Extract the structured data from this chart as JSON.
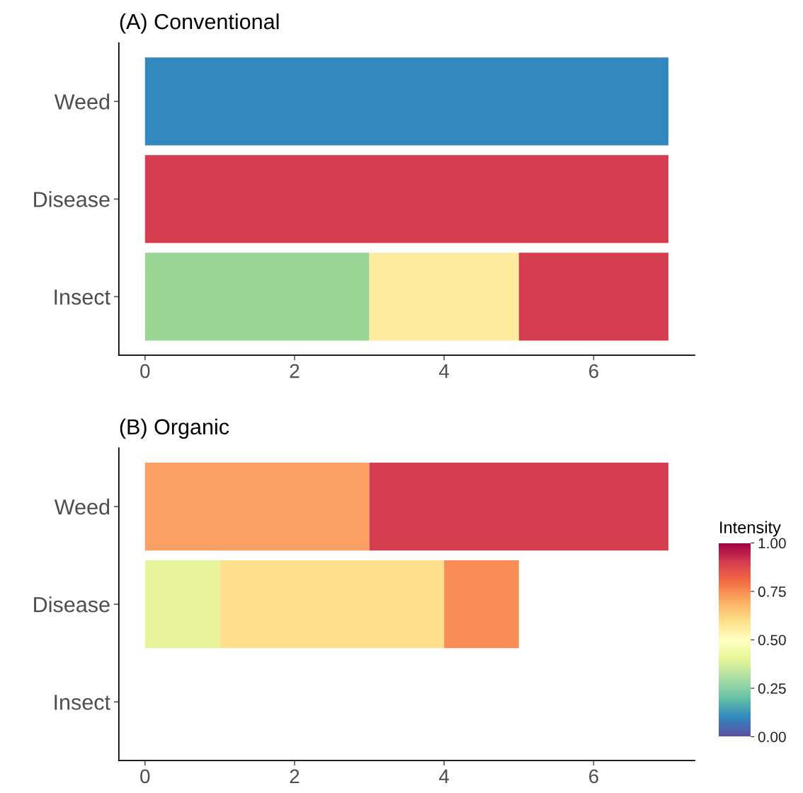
{
  "chart_data": [
    {
      "type": "bar",
      "title": "(A) Conventional",
      "orientation": "horizontal",
      "stacked": true,
      "categories": [
        "Weed",
        "Disease",
        "Insect"
      ],
      "xlim": [
        -0.35,
        7.35
      ],
      "xticks": [
        0,
        2,
        4,
        6
      ],
      "grid": false,
      "series": [
        {
          "colors": [
            "#3288bd",
            "#d53e4f",
            "#99d594"
          ],
          "values": [
            7,
            7,
            3
          ]
        },
        {
          "colors": [
            null,
            null,
            "#feeb9e"
          ],
          "values": [
            null,
            null,
            2
          ]
        },
        {
          "colors": [
            null,
            null,
            "#d53e4f"
          ],
          "values": [
            null,
            null,
            2
          ]
        }
      ]
    },
    {
      "type": "bar",
      "title": "(B) Organic",
      "orientation": "horizontal",
      "stacked": true,
      "categories": [
        "Weed",
        "Disease",
        "Insect"
      ],
      "xlim": [
        -0.35,
        7.35
      ],
      "xticks": [
        0,
        2,
        4,
        6
      ],
      "grid": false,
      "clabel": "Intensity",
      "clim": [
        0,
        1
      ],
      "cticks": [
        {
          "value": 0,
          "label": "0.00"
        },
        {
          "value": 0.25,
          "label": "0.25"
        },
        {
          "value": 0.5,
          "label": "0.50"
        },
        {
          "value": 0.75,
          "label": "0.75"
        },
        {
          "value": 1,
          "label": "1.00"
        }
      ],
      "series": [
        {
          "colors": [
            "#f9a062",
            "#e9f59d",
            null
          ],
          "values": [
            3,
            1,
            null
          ]
        },
        {
          "colors": [
            "#d53e4f",
            "#fedf8b",
            null
          ],
          "values": [
            4,
            3,
            null
          ]
        },
        {
          "colors": [
            null,
            "#f88d57",
            null
          ],
          "values": [
            null,
            1,
            null
          ]
        }
      ]
    }
  ]
}
